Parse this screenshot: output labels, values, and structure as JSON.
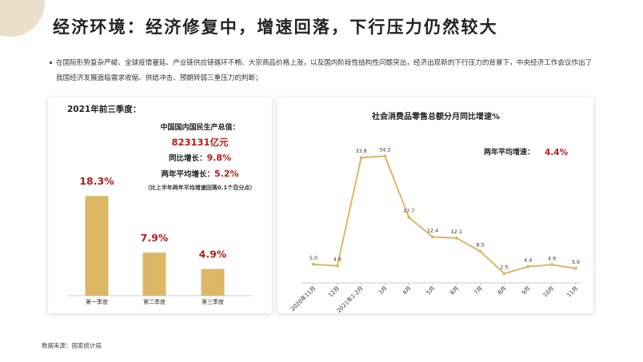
{
  "title": "经济环境：经济修复中，增速回落，下行压力仍然较大",
  "bullet": "在国际形势复杂严峻、全球疫情蔓延、产业链供应链循环不畅、大宗商品价格上涨，以及国内阶段性结构性问题突出，经济出现新的下行压力的背景下，中央经济工作会议作出了我国经济发展面临需求收缩、供给冲击、预期转弱三重压力的判断；",
  "left_panel": {
    "title": "2021年前三季度：",
    "gdp_label": "中国国内国民生产总值：",
    "gdp_value": "823131亿元",
    "yoy_label": "同比增长：",
    "yoy_value": "9.8%",
    "avg2_label": "两年平均增长：",
    "avg2_value": "5.2%",
    "note": "（比上半年两年平均增速回落0.1个百分点）"
  },
  "right_panel": {
    "avg_label": "两年平均增速：",
    "avg_value": "4.4%"
  },
  "source": "数据来源：国家统计局",
  "colors": {
    "bar": "#dcb766",
    "line": "#dcb766",
    "accent_red": "#b71c1c",
    "deco": "#eadfcb"
  },
  "chart_data": [
    {
      "type": "bar",
      "title": "",
      "categories": [
        "第一季度",
        "第二季度",
        "第三季度"
      ],
      "values": [
        18.3,
        7.9,
        4.9
      ],
      "value_labels": [
        "18.3%",
        "7.9%",
        "4.9%"
      ],
      "ylim": [
        0,
        22
      ],
      "grid": false
    },
    {
      "type": "line",
      "title": "社会消费品零售总额分月同比增速%",
      "categories": [
        "2020年11月",
        "12月",
        "2021年1-2月",
        "3月",
        "4月",
        "5月",
        "6月",
        "7月",
        "8月",
        "9月",
        "10月",
        "11月"
      ],
      "values": [
        5.0,
        4.6,
        33.8,
        34.2,
        17.7,
        12.4,
        12.1,
        8.5,
        2.5,
        4.4,
        4.9,
        3.9
      ],
      "value_labels": [
        "5.0",
        "4.6",
        "33.8",
        "34.2",
        "17.7",
        "12.4",
        "12.1",
        "8.5",
        "2.5",
        "4.4",
        "4.9",
        "3.9"
      ],
      "ylim": [
        0,
        36
      ],
      "grid": false
    }
  ]
}
